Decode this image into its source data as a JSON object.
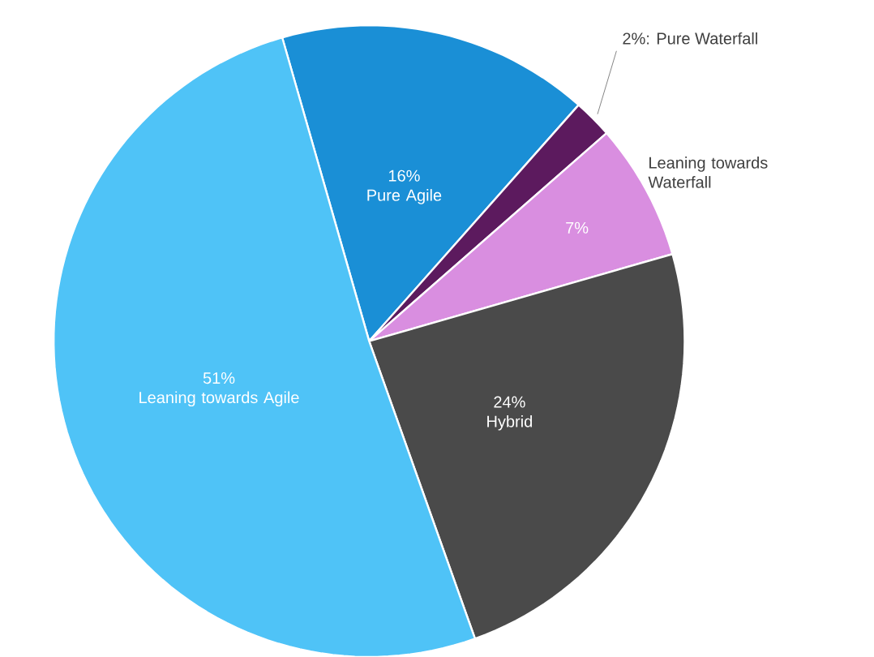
{
  "chart_data": {
    "type": "pie",
    "categories": [
      "Pure Agile",
      "Pure Waterfall",
      "Leaning towards Waterfall",
      "Hybrid",
      "Leaning towards Agile"
    ],
    "values": [
      16,
      2,
      7,
      24,
      51
    ],
    "value_labels": [
      "16%",
      "2%:",
      "7%",
      "24%",
      "51%"
    ],
    "colors": [
      "#1a8fd6",
      "#5c1a5e",
      "#d98ee0",
      "#4a4a4a",
      "#4fc3f7"
    ]
  }
}
